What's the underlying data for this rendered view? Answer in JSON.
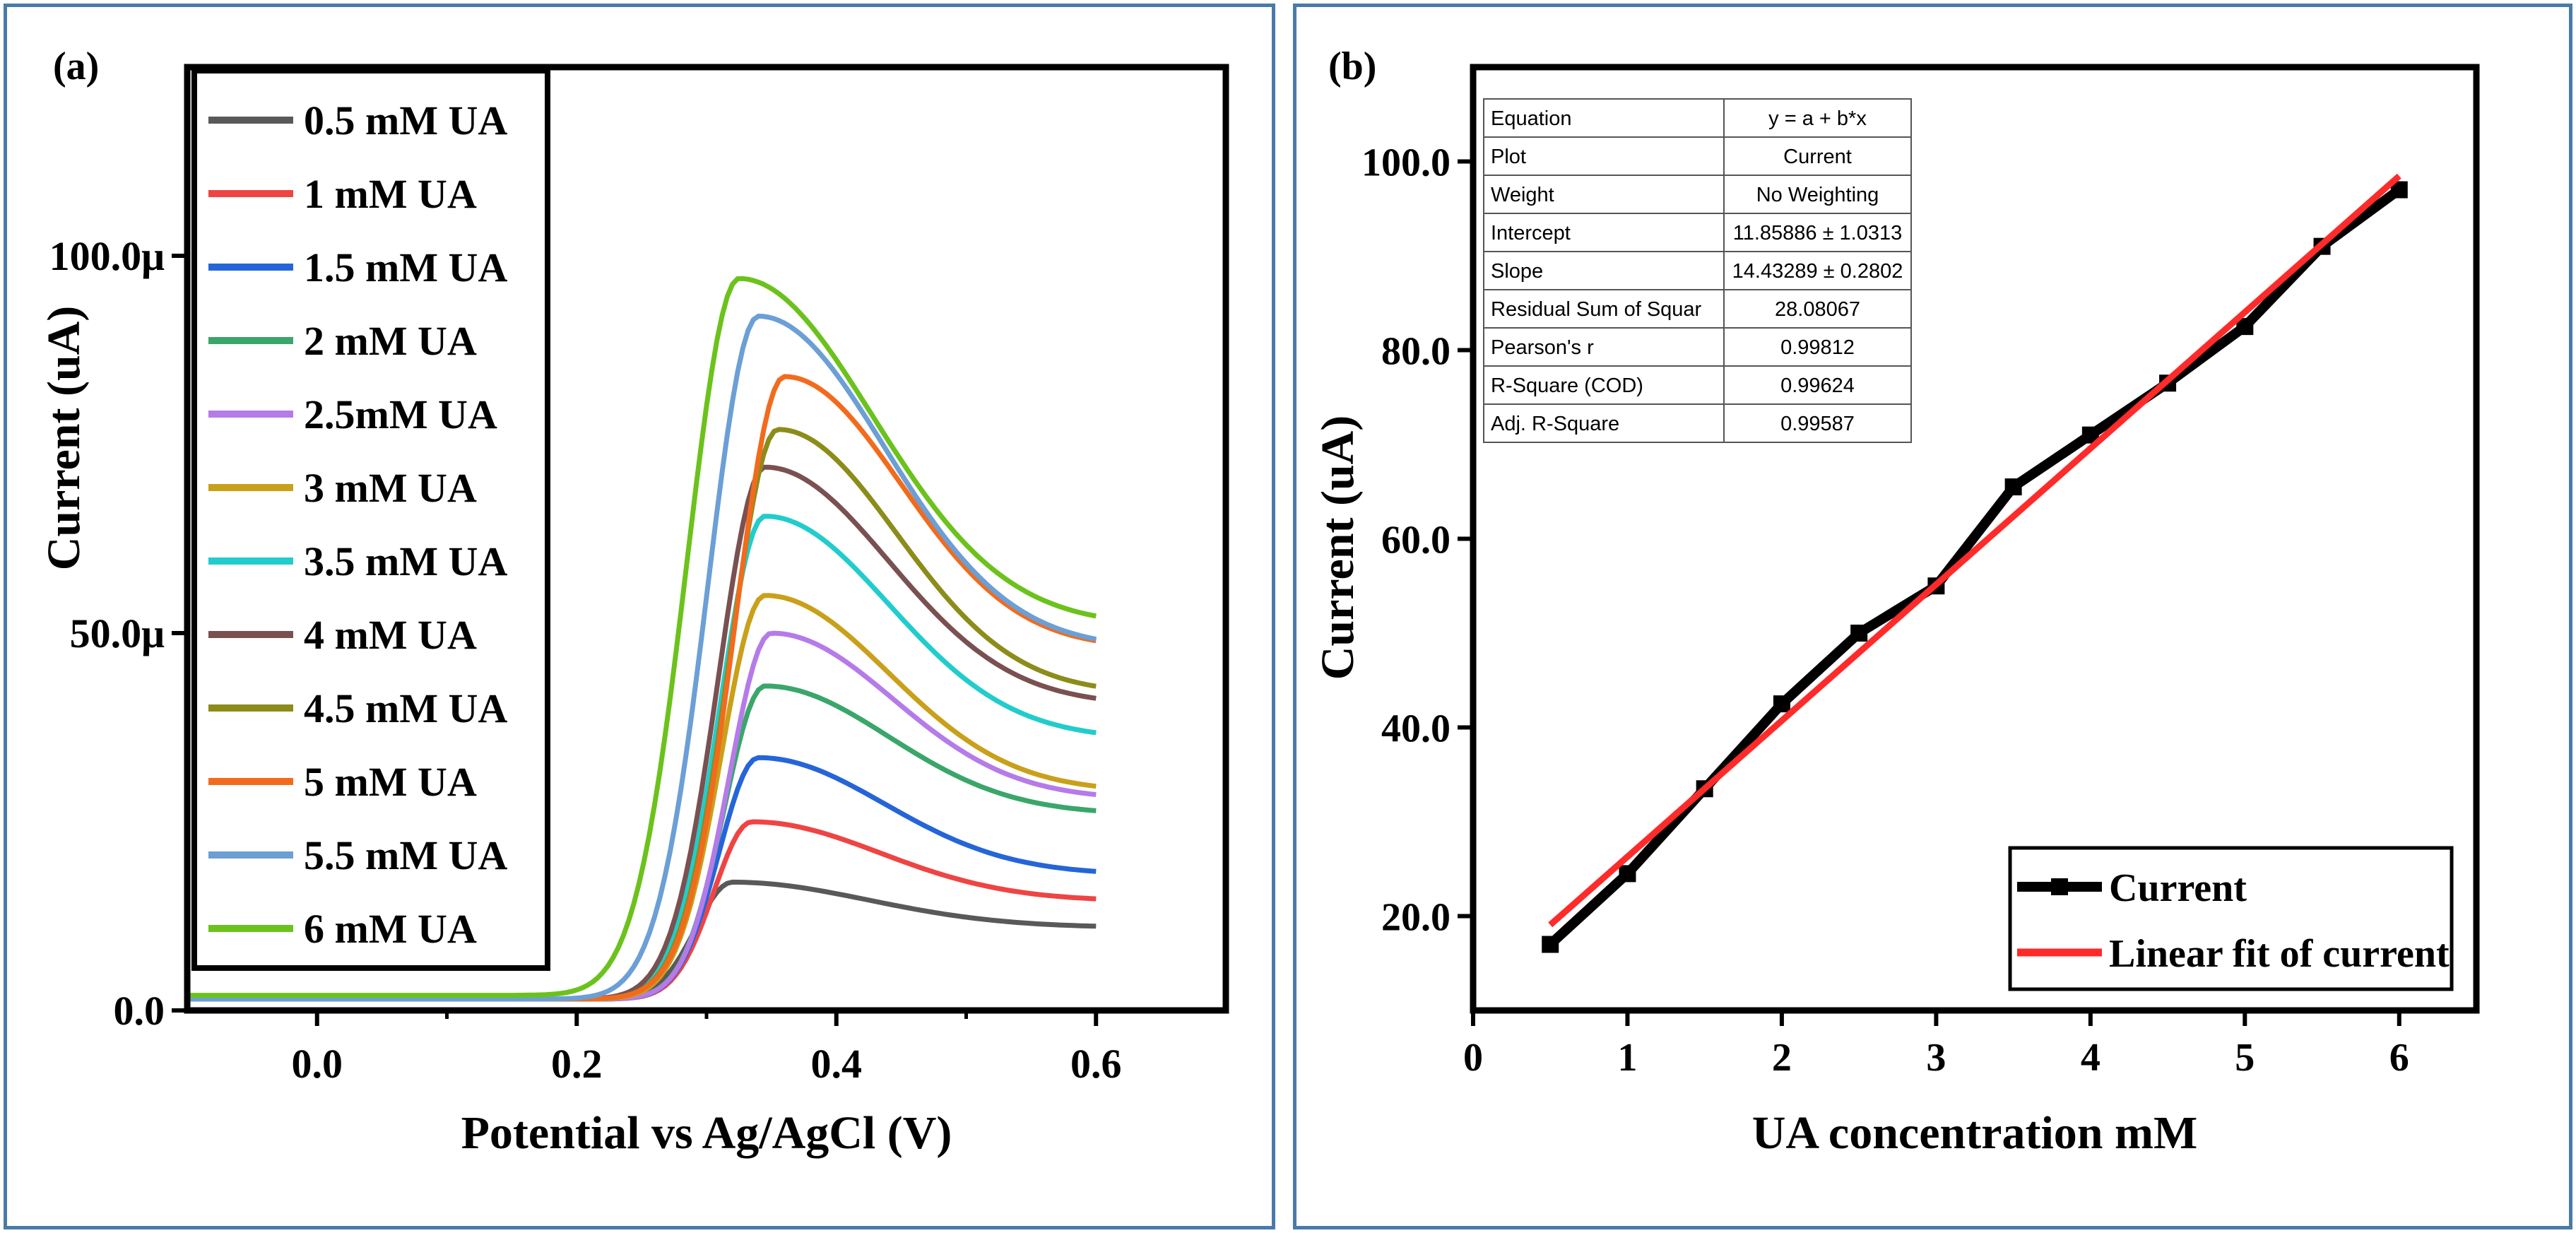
{
  "chart_data": [
    {
      "panel_label": "(a)",
      "type": "line",
      "xlabel": "Potential vs Ag/AgCl (V)",
      "ylabel": "Current (uA)",
      "xlim": [
        -0.1,
        0.7
      ],
      "ylim": [
        0,
        125
      ],
      "x_ticks": [
        0.0,
        0.2,
        0.4,
        0.6
      ],
      "x_tick_labels": [
        "0.0",
        "0.2",
        "0.4",
        "0.6"
      ],
      "y_ticks": [
        0,
        50,
        100
      ],
      "y_tick_labels": [
        "0.0",
        "50.0μ",
        "100.0μ"
      ],
      "legend_position": "top-left",
      "series": [
        {
          "name": "0.5 mM UA",
          "color": "#595959",
          "baseline": 1.5,
          "peak_x": 0.32,
          "peak": 17,
          "end": 11
        },
        {
          "name": "1 mM UA",
          "color": "#ef4444",
          "baseline": 1.5,
          "peak_x": 0.335,
          "peak": 25,
          "end": 14.5
        },
        {
          "name": "1.5 mM UA",
          "color": "#2565d8",
          "baseline": 1.5,
          "peak_x": 0.34,
          "peak": 33.5,
          "end": 18
        },
        {
          "name": "2 mM UA",
          "color": "#3aa66a",
          "baseline": 1.5,
          "peak_x": 0.345,
          "peak": 43,
          "end": 26
        },
        {
          "name": "2.5mM UA",
          "color": "#b57be8",
          "baseline": 1.5,
          "peak_x": 0.35,
          "peak": 50,
          "end": 28
        },
        {
          "name": "3 mM UA",
          "color": "#c9a01a",
          "baseline": 1.5,
          "peak_x": 0.345,
          "peak": 55,
          "end": 29
        },
        {
          "name": "3.5 mM UA",
          "color": "#22cccc",
          "baseline": 1.5,
          "peak_x": 0.345,
          "peak": 65.5,
          "end": 36
        },
        {
          "name": "4 mM UA",
          "color": "#7a5050",
          "baseline": 1.5,
          "peak_x": 0.345,
          "peak": 72,
          "end": 40.5
        },
        {
          "name": "4.5 mM UA",
          "color": "#8c8c1a",
          "baseline": 1.5,
          "peak_x": 0.355,
          "peak": 77,
          "end": 42
        },
        {
          "name": "5 mM UA",
          "color": "#f26b1d",
          "baseline": 1.5,
          "peak_x": 0.36,
          "peak": 84,
          "end": 48
        },
        {
          "name": "5.5 mM UA",
          "color": "#6b9fd6",
          "baseline": 1.5,
          "peak_x": 0.34,
          "peak": 92,
          "end": 48
        },
        {
          "name": "6 mM UA",
          "color": "#6cc21c",
          "baseline": 2.0,
          "peak_x": 0.325,
          "peak": 97,
          "end": 51
        }
      ]
    },
    {
      "panel_label": "(b)",
      "type": "line",
      "xlabel": "UA concentration mM",
      "ylabel": "Current (uA)",
      "xlim": [
        0,
        6.5
      ],
      "ylim": [
        10,
        110
      ],
      "x_ticks": [
        0,
        1,
        2,
        3,
        4,
        5,
        6
      ],
      "x_tick_labels": [
        "0",
        "1",
        "2",
        "3",
        "4",
        "5",
        "6"
      ],
      "y_ticks": [
        20,
        40,
        60,
        80,
        100
      ],
      "y_tick_labels": [
        "20.0",
        "40.0",
        "60.0",
        "80.0",
        "100.0"
      ],
      "legend_position": "bottom-right",
      "series": [
        {
          "name": "Current",
          "color": "#000000",
          "x": [
            0.5,
            1,
            1.5,
            2,
            2.5,
            3,
            3.5,
            4,
            4.5,
            5,
            5.5,
            6
          ],
          "y": [
            17,
            24.5,
            33.5,
            42.5,
            50,
            55,
            65.5,
            71,
            76.5,
            82.5,
            91,
            97
          ]
        },
        {
          "name": "Linear fit of current",
          "color": "#ff2a2a",
          "x": [
            0.5,
            6
          ],
          "y": [
            19.07,
            98.46
          ]
        }
      ],
      "fit_table": [
        {
          "label": "Equation",
          "value": "y = a + b*x"
        },
        {
          "label": "Plot",
          "value": "Current"
        },
        {
          "label": "Weight",
          "value": "No Weighting"
        },
        {
          "label": "Intercept",
          "value": "11.85886 ± 1.0313"
        },
        {
          "label": "Slope",
          "value": "14.43289 ± 0.2802"
        },
        {
          "label": "Residual Sum of Squar",
          "value": "28.08067"
        },
        {
          "label": "Pearson's r",
          "value": "0.99812"
        },
        {
          "label": "R-Square (COD)",
          "value": "0.99624"
        },
        {
          "label": "Adj. R-Square",
          "value": "0.99587"
        }
      ]
    }
  ]
}
